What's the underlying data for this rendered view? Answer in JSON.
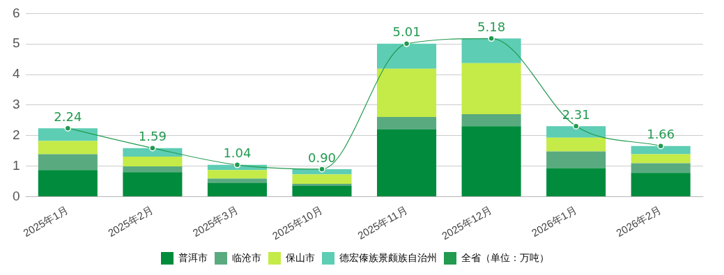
{
  "chart_data": {
    "type": "bar",
    "stacked": true,
    "categories": [
      "2025年1月",
      "2025年2月",
      "2025年3月",
      "2025年10月",
      "2025年11月",
      "2025年12月",
      "2026年1月",
      "2026年2月"
    ],
    "series": [
      {
        "name": "普洱市",
        "color": "#008c3c",
        "values": [
          0.87,
          0.8,
          0.44,
          0.35,
          2.2,
          2.31,
          0.93,
          0.78
        ]
      },
      {
        "name": "临沧市",
        "color": "#5aaa80",
        "values": [
          0.52,
          0.19,
          0.15,
          0.07,
          0.41,
          0.39,
          0.55,
          0.31
        ]
      },
      {
        "name": "保山市",
        "color": "#c4eb47",
        "values": [
          0.43,
          0.32,
          0.28,
          0.31,
          1.58,
          1.67,
          0.45,
          0.3
        ]
      },
      {
        "name": "德宏傣族景颇族自治州",
        "color": "#5dcdb4",
        "values": [
          0.42,
          0.28,
          0.17,
          0.17,
          0.82,
          0.81,
          0.38,
          0.27
        ]
      },
      {
        "name": "全省（单位：万吨）",
        "type": "line",
        "color": "#229a50",
        "values": [
          2.24,
          1.59,
          1.04,
          0.9,
          5.01,
          5.18,
          2.31,
          1.66
        ],
        "value_labels": [
          "2.24",
          "1.59",
          "1.04",
          "0.90",
          "5.01",
          "5.18",
          "2.31",
          "1.66"
        ]
      }
    ],
    "ylim": [
      0,
      6
    ],
    "yticks": [
      0,
      1,
      2,
      3,
      4,
      5,
      6
    ],
    "grid": "y",
    "legend": "bottom",
    "marker": "circle",
    "line_style": "solid"
  }
}
